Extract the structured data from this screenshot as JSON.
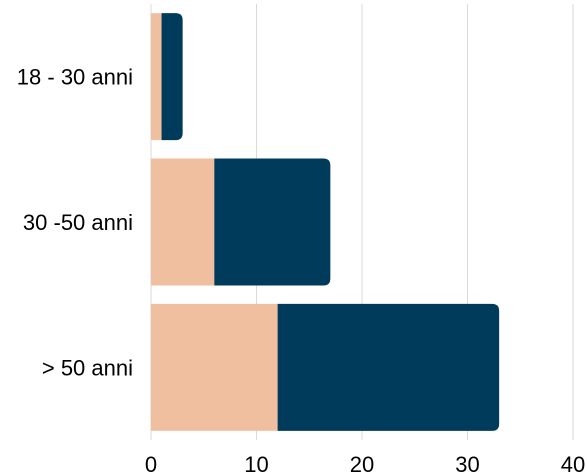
{
  "chart_data": {
    "type": "bar",
    "orientation": "horizontal",
    "stacked": true,
    "categories": [
      "18 - 30 anni",
      "30 -50 anni",
      "> 50 anni"
    ],
    "series": [
      {
        "values": [
          1,
          6,
          12
        ],
        "color": "#EFBF9F"
      },
      {
        "values": [
          2,
          11,
          21
        ],
        "color": "#003B5C"
      }
    ],
    "xlim": [
      0,
      40
    ],
    "xticks": [
      "0",
      "10",
      "20",
      "30",
      "40"
    ],
    "grid": true,
    "title": "",
    "xlabel": "",
    "ylabel": ""
  }
}
